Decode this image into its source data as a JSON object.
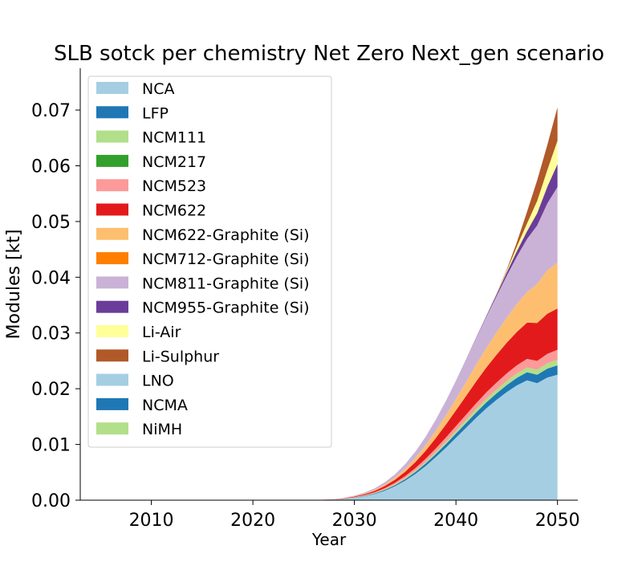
{
  "chart_data": {
    "type": "area",
    "stacked": true,
    "title": "SLB sotck per chemistry Net Zero Next_gen scenario",
    "xlabel": "Year",
    "ylabel": "Modules [kt]",
    "xlim": [
      2003,
      2052
    ],
    "ylim": [
      0,
      0.0775
    ],
    "xticks": [
      2010,
      2020,
      2030,
      2040,
      2050
    ],
    "yticks": [
      0.0,
      0.01,
      0.02,
      0.03,
      0.04,
      0.05,
      0.06,
      0.07
    ],
    "ytick_labels": [
      "0.00",
      "0.01",
      "0.02",
      "0.03",
      "0.04",
      "0.05",
      "0.06",
      "0.07"
    ],
    "legend_position": "upper-left",
    "grid": false,
    "x": [
      2025,
      2026,
      2027,
      2028,
      2029,
      2030,
      2031,
      2032,
      2033,
      2034,
      2035,
      2036,
      2037,
      2038,
      2039,
      2040,
      2041,
      2042,
      2043,
      2044,
      2045,
      2046,
      2047,
      2048,
      2049,
      2050
    ],
    "series": [
      {
        "name": "NCA",
        "color": "#a6cee3",
        "values": [
          0,
          2e-05,
          5e-05,
          0.0001,
          0.0002,
          0.0004,
          0.0007,
          0.0011,
          0.0017,
          0.0025,
          0.0035,
          0.0047,
          0.0061,
          0.0077,
          0.0094,
          0.0112,
          0.013,
          0.0148,
          0.0165,
          0.018,
          0.0194,
          0.0206,
          0.0215,
          0.021,
          0.022,
          0.0225
        ]
      },
      {
        "name": "LFP",
        "color": "#1f78b4",
        "values": [
          0,
          0,
          0,
          1e-05,
          2e-05,
          4e-05,
          7e-05,
          0.0001,
          0.00015,
          0.0002,
          0.00027,
          0.00035,
          0.00045,
          0.00055,
          0.00065,
          0.00075,
          0.00085,
          0.00095,
          0.00105,
          0.00115,
          0.00125,
          0.00135,
          0.00145,
          0.0015,
          0.0016,
          0.0017
        ]
      },
      {
        "name": "NCM111",
        "color": "#b2df8a",
        "values": [
          0,
          0,
          0,
          1e-05,
          2e-05,
          3e-05,
          5e-05,
          8e-05,
          0.00012,
          0.00016,
          0.0002,
          0.00025,
          0.0003,
          0.00036,
          0.00042,
          0.00048,
          0.00054,
          0.0006,
          0.00066,
          0.0007,
          0.00075,
          0.0008,
          0.00085,
          0.0009,
          0.00095,
          0.001
        ]
      },
      {
        "name": "NCM217",
        "color": "#33a02c",
        "values": [
          0,
          0,
          0,
          0,
          0,
          0,
          0,
          0,
          0,
          0,
          0,
          0,
          0,
          0,
          0,
          0,
          0,
          0,
          0,
          0,
          0,
          0,
          0,
          0,
          0,
          0
        ]
      },
      {
        "name": "NCM523",
        "color": "#fb9a99",
        "values": [
          0,
          0,
          1e-05,
          2e-05,
          4e-05,
          7e-05,
          0.0001,
          0.00015,
          0.0002,
          0.00027,
          0.00035,
          0.00045,
          0.00055,
          0.00065,
          0.00075,
          0.00085,
          0.00095,
          0.00105,
          0.00115,
          0.00125,
          0.00135,
          0.00145,
          0.00155,
          0.0016,
          0.0017,
          0.0018
        ]
      },
      {
        "name": "NCM622",
        "color": "#e31a1c",
        "values": [
          0,
          0,
          1e-05,
          3e-05,
          6e-05,
          0.0001,
          0.00016,
          0.00025,
          0.00038,
          0.00055,
          0.00078,
          0.00107,
          0.00143,
          0.00185,
          0.00232,
          0.00283,
          0.00337,
          0.00392,
          0.00447,
          0.005,
          0.0055,
          0.006,
          0.0065,
          0.0068,
          0.0072,
          0.0074
        ]
      },
      {
        "name": "NCM622-Graphite (Si)",
        "color": "#fdbf6f",
        "values": [
          0,
          0,
          1e-05,
          2e-05,
          4e-05,
          7e-05,
          0.00012,
          0.00018,
          0.00027,
          0.00039,
          0.00055,
          0.00075,
          0.001,
          0.0013,
          0.00165,
          0.00205,
          0.0025,
          0.003,
          0.0035,
          0.004,
          0.0045,
          0.005,
          0.0055,
          0.007,
          0.0078,
          0.0082
        ]
      },
      {
        "name": "NCM712-Graphite (Si)",
        "color": "#ff7f00",
        "values": [
          0,
          0,
          0,
          0,
          0,
          0,
          0,
          0,
          0,
          0,
          0,
          0,
          0,
          0,
          0,
          0,
          0,
          0,
          0,
          0,
          0,
          0,
          0,
          0,
          0,
          0
        ]
      },
      {
        "name": "NCM811-Graphite (Si)",
        "color": "#cab2d6",
        "values": [
          0,
          0,
          1e-05,
          3e-05,
          6e-05,
          0.0001,
          0.00017,
          0.00027,
          0.0004,
          0.00058,
          0.00082,
          0.00113,
          0.00152,
          0.002,
          0.00258,
          0.00325,
          0.004,
          0.0048,
          0.0056,
          0.0065,
          0.0075,
          0.0085,
          0.0095,
          0.0105,
          0.012,
          0.0136
        ]
      },
      {
        "name": "NCM955-Graphite (Si)",
        "color": "#6a3d9a",
        "values": [
          0,
          0,
          0,
          0,
          0,
          0,
          0,
          0,
          0,
          0,
          0,
          0,
          0,
          0,
          1e-05,
          2e-05,
          5e-05,
          0.0001,
          0.00018,
          0.00035,
          0.0006,
          0.001,
          0.0014,
          0.0022,
          0.003,
          0.0041
        ]
      },
      {
        "name": "Li-Air",
        "color": "#ffff99",
        "values": [
          0,
          0,
          0,
          0,
          0,
          0,
          0,
          0,
          0,
          0,
          0,
          0,
          0,
          0,
          0,
          0,
          0,
          2e-05,
          5e-05,
          0.0001,
          0.0003,
          0.0008,
          0.0014,
          0.0022,
          0.003,
          0.0042
        ]
      },
      {
        "name": "Li-Sulphur",
        "color": "#b15928",
        "values": [
          0,
          0,
          0,
          0,
          0,
          0,
          0,
          0,
          0,
          0,
          0,
          0,
          0,
          0,
          0,
          0,
          0,
          0,
          1e-05,
          5e-05,
          0.0002,
          0.0008,
          0.0021,
          0.0037,
          0.0045,
          0.006
        ]
      },
      {
        "name": "LNO",
        "color": "#a6cee3",
        "values": [
          0,
          0,
          0,
          0,
          0,
          0,
          0,
          0,
          0,
          0,
          0,
          0,
          0,
          0,
          0,
          0,
          0,
          0,
          0,
          0,
          0,
          0,
          0,
          0,
          0,
          0
        ]
      },
      {
        "name": "NCMA",
        "color": "#1f78b4",
        "values": [
          0,
          0,
          0,
          0,
          0,
          0,
          0,
          0,
          0,
          0,
          0,
          0,
          0,
          0,
          0,
          0,
          0,
          0,
          0,
          0,
          0,
          0,
          0,
          0,
          0,
          0
        ]
      },
      {
        "name": "NiMH",
        "color": "#b2df8a",
        "values": [
          0,
          0,
          0,
          0,
          0,
          0,
          0,
          0,
          0,
          0,
          0,
          0,
          0,
          0,
          0,
          0,
          0,
          0,
          0,
          0,
          0,
          0,
          0,
          0,
          0,
          0
        ]
      }
    ]
  }
}
